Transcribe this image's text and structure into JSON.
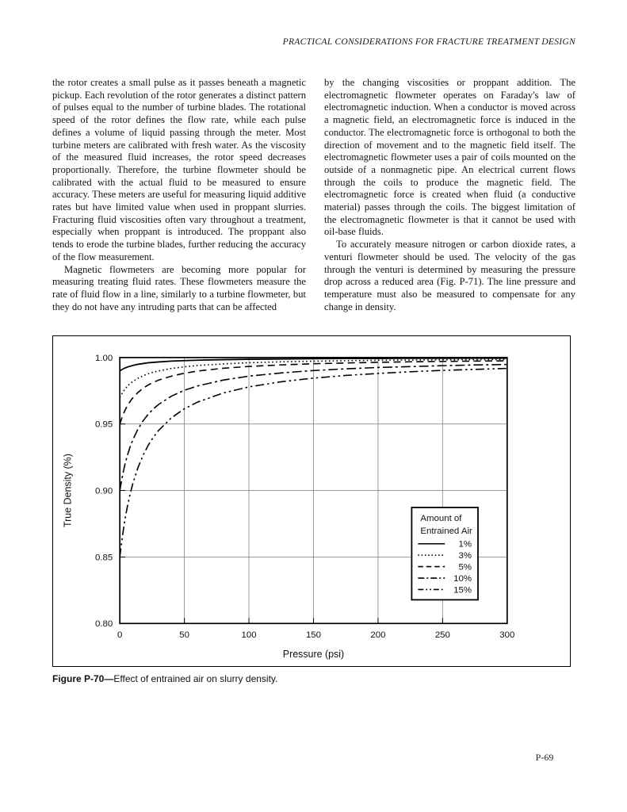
{
  "page": {
    "header": "PRACTICAL CONSIDERATIONS FOR FRACTURE TREATMENT DESIGN",
    "page_number": "P-69"
  },
  "columns": {
    "left": {
      "paragraphs": [
        "the rotor creates a small pulse as it passes beneath a magnetic pickup. Each revolution of the rotor generates a distinct pattern of pulses equal to the number of turbine blades. The rotational speed of the rotor defines the flow rate, while each pulse defines a volume of liquid passing through the meter. Most turbine meters are calibrated with fresh water. As the viscosity of the measured fluid increases, the rotor speed decreases proportionally. Therefore, the turbine flowmeter should be calibrated with the actual fluid to be measured to ensure accuracy. These meters are useful for measuring liquid additive rates but have limited value when used in proppant slurries. Fracturing fluid viscosities often vary throughout a treatment, especially when proppant is introduced. The proppant also tends to erode the turbine blades, further reducing the accuracy of the flow measurement.",
        "Magnetic flowmeters are becoming more popular for measuring treating fluid rates. These flowmeters measure the rate of fluid flow in a line, similarly to a turbine flowmeter, but they do not have any intruding parts that can be affected"
      ]
    },
    "right": {
      "paragraphs": [
        "by the changing viscosities or proppant addition. The electromagnetic flowmeter operates on Faraday's law of electromagnetic induction. When a conductor is moved across a magnetic field, an electromagnetic force is induced in the conductor. The electromagnetic force is orthogonal to both the direction of movement and to the magnetic field itself. The electromagnetic flowmeter uses a pair of coils mounted on the outside of a nonmagnetic pipe. An electrical current flows through the coils to produce the magnetic field. The electromagnetic force is created when fluid (a conductive material) passes through the coils. The biggest limitation of the electromagnetic flowmeter is that it cannot be used with oil-base fluids.",
        "To accurately measure nitrogen or carbon dioxide rates, a venturi flowmeter should be used. The velocity of the gas through the venturi is determined by measuring the pressure drop across a reduced area (Fig. P-71). The line pressure and temperature must also be measured to compensate for any change in density."
      ]
    }
  },
  "figure": {
    "caption_label": "Figure P-70",
    "caption_dash": "—",
    "caption_text": "Effect of entrained air on slurry density."
  },
  "chart_data": {
    "type": "line",
    "title": "",
    "xlabel": "Pressure (psi)",
    "ylabel": "True Density (%)",
    "xlim": [
      0,
      300
    ],
    "ylim": [
      0.8,
      1.0
    ],
    "x_ticks": [
      0,
      50,
      100,
      150,
      200,
      250,
      300
    ],
    "y_ticks": [
      0.8,
      0.85,
      0.9,
      0.95,
      1.0
    ],
    "grid": true,
    "legend_title": [
      "Amount of",
      "Entrained Air"
    ],
    "legend_position": "lower right",
    "line_color": "#000000",
    "grid_color": "#8f8f8f",
    "x": [
      0,
      2,
      4,
      6,
      8,
      10,
      14,
      18,
      22,
      26,
      30,
      40,
      50,
      60,
      80,
      100,
      125,
      150,
      175,
      200,
      225,
      250,
      275,
      300
    ],
    "series": [
      {
        "name": "1%",
        "style": "solid",
        "values": [
          0.99,
          0.9912,
          0.9921,
          0.9929,
          0.9935,
          0.994,
          0.9949,
          0.9955,
          0.996,
          0.9964,
          0.9967,
          0.9973,
          0.9977,
          0.998,
          0.9984,
          0.9987,
          0.9989,
          0.9991,
          0.9992,
          0.9993,
          0.9994,
          0.9994,
          0.9995,
          0.9995
        ]
      },
      {
        "name": "3%",
        "style": "dotted",
        "values": [
          0.97,
          0.9735,
          0.9763,
          0.9785,
          0.9804,
          0.9819,
          0.9844,
          0.9863,
          0.9878,
          0.989,
          0.9899,
          0.9918,
          0.993,
          0.994,
          0.9952,
          0.9961,
          0.9968,
          0.9972,
          0.9976,
          0.9979,
          0.9981,
          0.9983,
          0.9984,
          0.9986
        ]
      },
      {
        "name": "5%",
        "style": "dashed",
        "values": [
          0.95,
          0.9557,
          0.9603,
          0.964,
          0.967,
          0.9696,
          0.9737,
          0.9769,
          0.9794,
          0.9813,
          0.983,
          0.986,
          0.9882,
          0.9898,
          0.9919,
          0.9933,
          0.9945,
          0.9953,
          0.9959,
          0.9964,
          0.9968,
          0.9971,
          0.9973,
          0.9975
        ]
      },
      {
        "name": "10%",
        "style": "dashdot",
        "values": [
          0.9,
          0.9109,
          0.9197,
          0.9269,
          0.9329,
          0.938,
          0.9461,
          0.9524,
          0.9574,
          0.9614,
          0.9647,
          0.971,
          0.9754,
          0.9786,
          0.983,
          0.986,
          0.9884,
          0.9902,
          0.9915,
          0.9925,
          0.9932,
          0.9939,
          0.9944,
          0.9948
        ]
      },
      {
        "name": "15%",
        "style": "dashdotdot",
        "values": [
          0.85,
          0.8656,
          0.8782,
          0.8886,
          0.8974,
          0.905,
          0.9171,
          0.9265,
          0.934,
          0.9401,
          0.9451,
          0.9547,
          0.9614,
          0.9664,
          0.9733,
          0.9779,
          0.9818,
          0.9845,
          0.9865,
          0.988,
          0.9893,
          0.9903,
          0.9911,
          0.9918
        ]
      }
    ]
  }
}
